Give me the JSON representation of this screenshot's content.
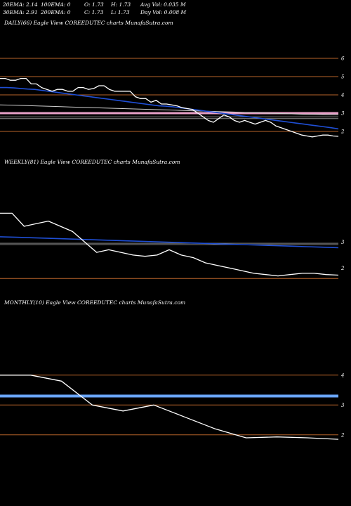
{
  "header": {
    "row1": [
      "20EMA: 2.14",
      "100EMA: 0",
      "O: 1.73",
      "H: 1.73",
      "Avg Vol: 0.035 M"
    ],
    "row2": [
      "30EMA: 2.91",
      "200EMA: 0",
      "C: 1.73",
      "L: 1.73",
      "Day Vol: 0.008 M"
    ]
  },
  "panels": {
    "daily": {
      "label": "DAILY(66) Eagle   View  COREEDUTEC charts MunafaSutra.com"
    },
    "weekly": {
      "label": "WEEKLY(81) Eagle   View  COREEDUTEC charts MunafaSutra.com"
    },
    "monthly": {
      "label": "MONTHLY(10) Eagle   View  COREEDUTEC charts MunafaSutra.com"
    }
  },
  "colors": {
    "background": "#000000",
    "price": "#ffffff",
    "ema_blue": "#1f4fd6",
    "ema_light_blue": "#6aa6ff",
    "level_line": "#b8642a",
    "pink_band": "#e8a0c8",
    "gray_band": "#888888"
  },
  "chart_data": [
    {
      "type": "line",
      "name": "daily",
      "ylim": [
        1.5,
        6.5
      ],
      "yticks": [
        2,
        3,
        4,
        5,
        6
      ],
      "levels": [
        2,
        3,
        4,
        5,
        6
      ],
      "price": [
        4.9,
        4.9,
        4.8,
        4.8,
        4.9,
        4.9,
        4.6,
        4.6,
        4.4,
        4.3,
        4.2,
        4.3,
        4.3,
        4.2,
        4.2,
        4.4,
        4.4,
        4.3,
        4.35,
        4.5,
        4.5,
        4.3,
        4.2,
        4.2,
        4.2,
        4.2,
        3.9,
        3.8,
        3.8,
        3.6,
        3.7,
        3.5,
        3.5,
        3.45,
        3.4,
        3.3,
        3.25,
        3.2,
        3.0,
        2.8,
        2.6,
        2.5,
        2.7,
        2.9,
        2.8,
        2.6,
        2.5,
        2.6,
        2.5,
        2.4,
        2.5,
        2.6,
        2.5,
        2.3,
        2.2,
        2.1,
        2.0,
        1.9,
        1.8,
        1.75,
        1.7,
        1.75,
        1.8,
        1.8,
        1.75,
        1.73
      ],
      "ema_fast": [
        4.4,
        4.4,
        4.38,
        4.35,
        4.32,
        4.3,
        4.25,
        4.2,
        4.15,
        4.1,
        4.05,
        4.0,
        3.95,
        3.9,
        3.85,
        3.8,
        3.75,
        3.7,
        3.65,
        3.6,
        3.55,
        3.5,
        3.45,
        3.4,
        3.38,
        3.35,
        3.3,
        3.25,
        3.2,
        3.15,
        3.1,
        3.05,
        3.0,
        2.95,
        2.9,
        2.85,
        2.8,
        2.75,
        2.7,
        2.65,
        2.6,
        2.55,
        2.5,
        2.45,
        2.4,
        2.35,
        2.3,
        2.25,
        2.2,
        2.14
      ],
      "ema_slow": [
        3.45,
        3.44,
        3.42,
        3.4,
        3.38,
        3.36,
        3.34,
        3.32,
        3.3,
        3.28,
        3.26,
        3.24,
        3.22,
        3.2,
        3.18,
        3.16,
        3.14,
        3.12,
        3.1,
        3.08,
        3.06,
        3.04,
        3.02,
        3.0,
        2.98,
        2.96,
        2.94,
        2.93,
        2.92,
        2.91
      ],
      "band_pink": [
        3.0,
        3.0
      ],
      "band_gray": [
        2.7,
        2.8
      ]
    },
    {
      "type": "line",
      "name": "weekly",
      "ylim": [
        1.5,
        5.0
      ],
      "yticks": [
        2,
        3
      ],
      "levels": [
        1.6,
        2.9
      ],
      "price": [
        4.1,
        4.1,
        3.6,
        3.7,
        3.8,
        3.6,
        3.4,
        3.0,
        2.6,
        2.7,
        2.6,
        2.5,
        2.45,
        2.5,
        2.7,
        2.5,
        2.4,
        2.2,
        2.1,
        2.0,
        1.9,
        1.8,
        1.75,
        1.7,
        1.75,
        1.8,
        1.8,
        1.75,
        1.73
      ],
      "ema_fast": [
        3.2,
        3.18,
        3.16,
        3.14,
        3.12,
        3.1,
        3.08,
        3.06,
        3.04,
        3.02,
        3.0,
        2.98,
        2.96,
        2.94,
        2.92,
        2.9,
        2.88,
        2.86,
        2.84,
        2.82,
        2.8,
        2.78
      ],
      "band_gray": [
        2.9,
        2.95
      ]
    },
    {
      "type": "line",
      "name": "monthly",
      "ylim": [
        1.5,
        5.5
      ],
      "yticks": [
        2,
        3,
        4
      ],
      "levels": [
        2.0,
        3.0,
        4.0
      ],
      "price": [
        4.0,
        4.0,
        3.8,
        3.0,
        2.8,
        3.0,
        2.6,
        2.2,
        1.9,
        1.93,
        1.9,
        1.85
      ],
      "ema_flat": [
        3.3,
        3.3
      ]
    }
  ]
}
